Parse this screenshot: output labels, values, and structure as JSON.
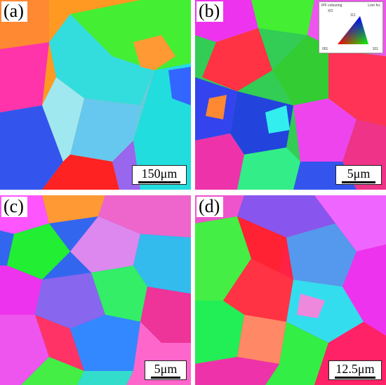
{
  "panels": [
    {
      "label": "(a)",
      "scale": "150μm"
    },
    {
      "label": "(b)",
      "scale": "5μm"
    },
    {
      "label": "(c)",
      "scale": "5μm"
    },
    {
      "label": "(d)",
      "scale": "12.5μm"
    }
  ],
  "ipf_key": {
    "title": "IPF colouring",
    "axis": "XO",
    "phase": "Lron fcc",
    "corner_top": "111",
    "corner_left": "001",
    "corner_right": "101"
  },
  "colors": {
    "red": "#ff2020",
    "green": "#22ee33",
    "blue": "#3344ee",
    "magenta": "#ee33ee",
    "cyan": "#33eeee",
    "orange": "#ff8822",
    "violet": "#9966ee",
    "aqua": "#44ddcc"
  }
}
